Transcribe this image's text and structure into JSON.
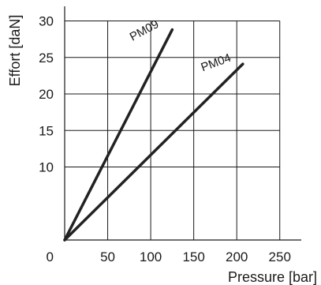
{
  "chart_data": {
    "type": "line",
    "title": "",
    "xlabel": "Pressure [bar]",
    "ylabel": "Effort [daN]",
    "xlim": [
      0,
      275
    ],
    "ylim": [
      0,
      32
    ],
    "grid": true,
    "legend": "none",
    "x_ticks": [
      50,
      100,
      150,
      200,
      250
    ],
    "y_ticks": [
      10,
      15,
      20,
      25,
      30
    ],
    "origin_label": "0",
    "series": [
      {
        "name": "PM09",
        "x": [
          0,
          125
        ],
        "y": [
          0,
          28.8
        ]
      },
      {
        "name": "PM04",
        "x": [
          0,
          207
        ],
        "y": [
          0,
          24.1
        ]
      }
    ],
    "colors": {
      "line": "#222222",
      "grid": "#1a1a1a",
      "background": "#ffffff"
    }
  }
}
